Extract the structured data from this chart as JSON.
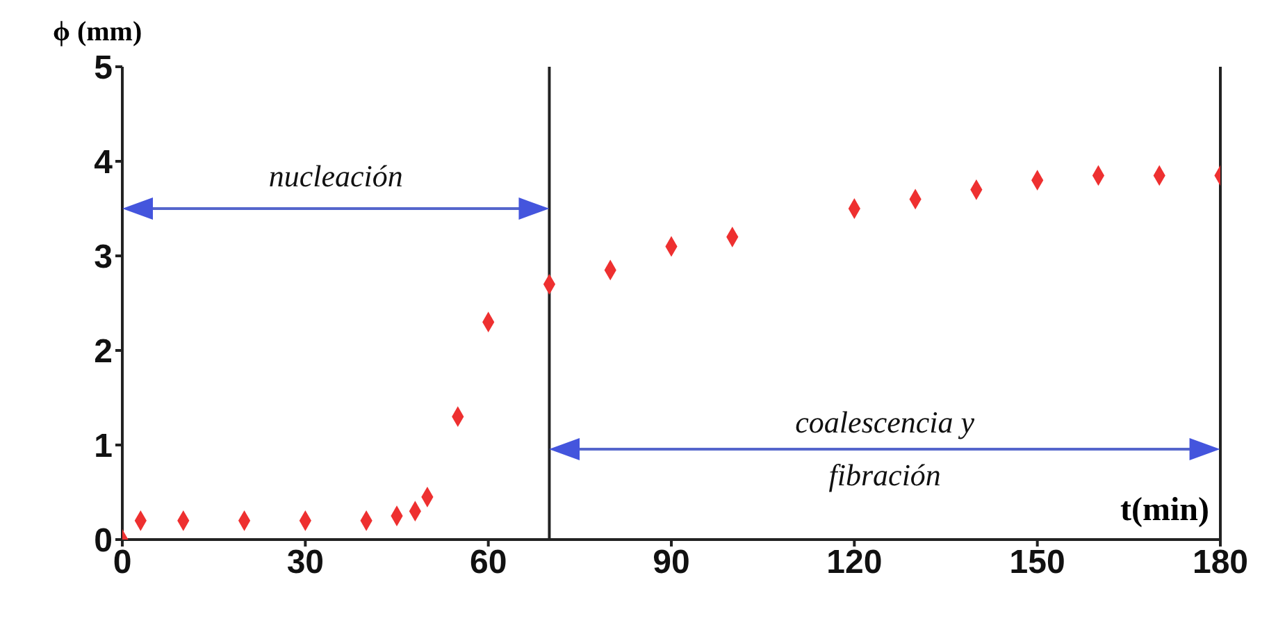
{
  "chart_data": {
    "type": "scatter",
    "ylabel": "ϕ (mm)",
    "xlabel": "t(min)",
    "x": [
      0,
      3,
      10,
      20,
      30,
      40,
      45,
      48,
      50,
      55,
      60,
      70,
      80,
      90,
      100,
      120,
      130,
      140,
      150,
      160,
      170,
      180
    ],
    "series": [
      {
        "color": "#ee3030",
        "values": [
          0,
          0.2,
          0.2,
          0.2,
          0.2,
          0.2,
          0.25,
          0.3,
          0.45,
          1.3,
          2.3,
          2.7,
          2.85,
          3.1,
          3.2,
          3.5,
          3.6,
          3.7,
          3.8,
          3.85,
          3.85,
          3.85
        ]
      }
    ],
    "xlim": [
      0,
      180
    ],
    "xticks": [
      0,
      30,
      60,
      90,
      120,
      150,
      180
    ],
    "ylim": [
      0,
      5
    ],
    "yticks": [
      0,
      1,
      2,
      3,
      4,
      5
    ],
    "marker": "diamond",
    "grid": false,
    "ref_lines": [
      {
        "axis": "x",
        "value": 70,
        "color": "#222222"
      },
      {
        "axis": "x",
        "value": 180,
        "color": "#222222"
      }
    ],
    "annotations": [
      "nucleación",
      "coalescencia y fibración"
    ]
  }
}
